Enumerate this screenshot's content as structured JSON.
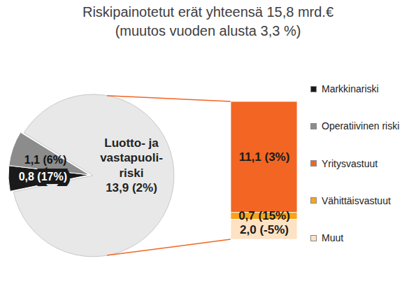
{
  "chart_data": [
    {
      "type": "pie",
      "title": "Riskipainotetut erät yhteensä 15,8 mrd.€",
      "subtitle": "(muutos vuoden alusta 3,3 %)",
      "categories": [
        "Markkinariski",
        "Operatiivinen riski",
        "Luotto- ja\nvastapuoli-\nriski"
      ],
      "values": [
        0.8,
        1.1,
        13.9
      ],
      "value_labels": [
        "0,8 (17%)",
        "1,1 (6%)",
        "13,9 (2%)"
      ],
      "colors": [
        "#1a1a1a",
        "#8c8c8c",
        "#e8e8e8"
      ],
      "data_labels": true,
      "legend": "right"
    },
    {
      "type": "bar",
      "stacked": true,
      "categories": [
        "Yritysvastuut",
        "Vähittäisvastuut",
        "Muut"
      ],
      "values": [
        11.1,
        0.7,
        2.0
      ],
      "value_labels": [
        "11,1 (3%)",
        "0,7 (15%)",
        "2,0 (-5%)"
      ],
      "colors": [
        "#f26522",
        "#f7a41d",
        "#fde2c4"
      ],
      "data_labels": true,
      "tick_labels": false,
      "legend": "right"
    }
  ]
}
